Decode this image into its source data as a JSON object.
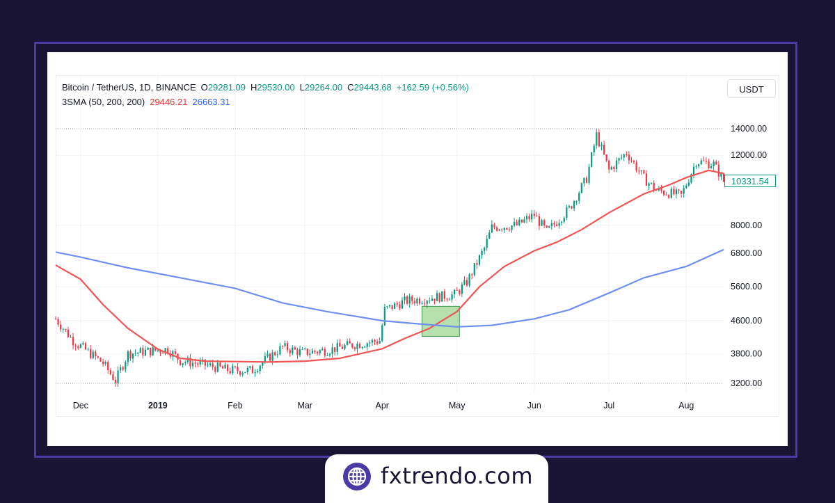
{
  "legend": {
    "symbol": "Bitcoin / TetherUS, 1D, BINANCE",
    "open_label": "O",
    "open": "29281.09",
    "high_label": "H",
    "high": "29530.00",
    "low_label": "L",
    "low": "29264.00",
    "close_label": "C",
    "close": "29443.68",
    "change": "+162.59 (+0.56%)",
    "indicator": "3SMA (50, 200, 200)",
    "sma_fast": "29446.21",
    "sma_slow": "26663.31"
  },
  "currency_button": "USDT",
  "last_price": "10331.54",
  "brand": {
    "name": "fxtrendo.com"
  },
  "colors": {
    "up": "#089981",
    "down": "#f23645",
    "sma_fast": "#f05454",
    "sma_slow": "#6f8ff0",
    "highlight": "#9fd694"
  },
  "chart_data": {
    "type": "candlestick",
    "x_ticks": [
      {
        "label": "Dec",
        "date": "2018-12-01"
      },
      {
        "label": "2019",
        "date": "2019-01-01"
      },
      {
        "label": "Feb",
        "date": "2019-02-01"
      },
      {
        "label": "Mar",
        "date": "2019-03-01"
      },
      {
        "label": "Apr",
        "date": "2019-04-01"
      },
      {
        "label": "May",
        "date": "2019-05-01"
      },
      {
        "label": "Jun",
        "date": "2019-06-01"
      },
      {
        "label": "Jul",
        "date": "2019-07-01"
      },
      {
        "label": "Aug",
        "date": "2019-08-01"
      }
    ],
    "y_ticks": [
      "14000.00",
      "12000.00",
      "8000.00",
      "6800.00",
      "5600.00",
      "4600.00",
      "3800.00",
      "3200.00"
    ],
    "y_scale": "log",
    "ylim": [
      3200,
      14000
    ],
    "xlim": [
      "2018-11-21",
      "2019-08-16"
    ],
    "grid": true,
    "series": [
      {
        "name": "SMA 50",
        "points": [
          [
            "2018-11-21",
            6350
          ],
          [
            "2018-12-01",
            5850
          ],
          [
            "2018-12-10",
            5050
          ],
          [
            "2018-12-20",
            4400
          ],
          [
            "2019-01-01",
            3900
          ],
          [
            "2019-01-10",
            3700
          ],
          [
            "2019-01-20",
            3640
          ],
          [
            "2019-02-01",
            3630
          ],
          [
            "2019-02-15",
            3620
          ],
          [
            "2019-03-01",
            3640
          ],
          [
            "2019-03-15",
            3700
          ],
          [
            "2019-04-01",
            3910
          ],
          [
            "2019-04-10",
            4150
          ],
          [
            "2019-04-20",
            4400
          ],
          [
            "2019-05-01",
            4850
          ],
          [
            "2019-05-10",
            5600
          ],
          [
            "2019-05-20",
            6300
          ],
          [
            "2019-06-01",
            6900
          ],
          [
            "2019-06-10",
            7250
          ],
          [
            "2019-06-20",
            7800
          ],
          [
            "2019-07-01",
            8600
          ],
          [
            "2019-07-15",
            9600
          ],
          [
            "2019-07-25",
            10100
          ],
          [
            "2019-08-01",
            10550
          ],
          [
            "2019-08-10",
            11000
          ],
          [
            "2019-08-16",
            10800
          ]
        ]
      },
      {
        "name": "SMA 200",
        "points": [
          [
            "2018-11-21",
            6850
          ],
          [
            "2018-12-01",
            6650
          ],
          [
            "2018-12-20",
            6250
          ],
          [
            "2019-01-10",
            5900
          ],
          [
            "2019-02-01",
            5550
          ],
          [
            "2019-02-20",
            5100
          ],
          [
            "2019-03-10",
            4850
          ],
          [
            "2019-04-01",
            4600
          ],
          [
            "2019-04-15",
            4520
          ],
          [
            "2019-05-01",
            4440
          ],
          [
            "2019-05-15",
            4480
          ],
          [
            "2019-06-01",
            4650
          ],
          [
            "2019-06-15",
            4900
          ],
          [
            "2019-07-01",
            5400
          ],
          [
            "2019-07-15",
            5900
          ],
          [
            "2019-08-01",
            6300
          ],
          [
            "2019-08-16",
            6950
          ]
        ]
      }
    ],
    "candles_anchor": [
      [
        "2018-11-21",
        4650
      ],
      [
        "2018-11-28",
        4100
      ],
      [
        "2018-12-05",
        3800
      ],
      [
        "2018-12-10",
        3600
      ],
      [
        "2018-12-15",
        3250
      ],
      [
        "2018-12-20",
        3800
      ],
      [
        "2018-12-27",
        3850
      ],
      [
        "2019-01-05",
        3900
      ],
      [
        "2019-01-10",
        3650
      ],
      [
        "2019-01-20",
        3560
      ],
      [
        "2019-01-30",
        3450
      ],
      [
        "2019-02-08",
        3450
      ],
      [
        "2019-02-12",
        3620
      ],
      [
        "2019-02-20",
        3950
      ],
      [
        "2019-02-28",
        3820
      ],
      [
        "2019-03-10",
        3880
      ],
      [
        "2019-03-20",
        4000
      ],
      [
        "2019-03-31",
        4100
      ],
      [
        "2019-04-02",
        4900
      ],
      [
        "2019-04-10",
        5150
      ],
      [
        "2019-04-20",
        5250
      ],
      [
        "2019-04-30",
        5350
      ],
      [
        "2019-05-05",
        5750
      ],
      [
        "2019-05-12",
        7000
      ],
      [
        "2019-05-15",
        7900
      ],
      [
        "2019-05-25",
        8000
      ],
      [
        "2019-06-01",
        8500
      ],
      [
        "2019-06-06",
        7700
      ],
      [
        "2019-06-15",
        8800
      ],
      [
        "2019-06-22",
        10500
      ],
      [
        "2019-06-26",
        13500
      ],
      [
        "2019-07-01",
        11000
      ],
      [
        "2019-07-08",
        12200
      ],
      [
        "2019-07-15",
        10500
      ],
      [
        "2019-07-20",
        9800
      ],
      [
        "2019-07-30",
        9500
      ],
      [
        "2019-08-05",
        11600
      ],
      [
        "2019-08-12",
        11400
      ],
      [
        "2019-08-16",
        10331
      ]
    ],
    "highlight_box": {
      "x0": "2019-04-17",
      "x1": "2019-05-02",
      "y0": 4200,
      "y1": 5000
    }
  }
}
